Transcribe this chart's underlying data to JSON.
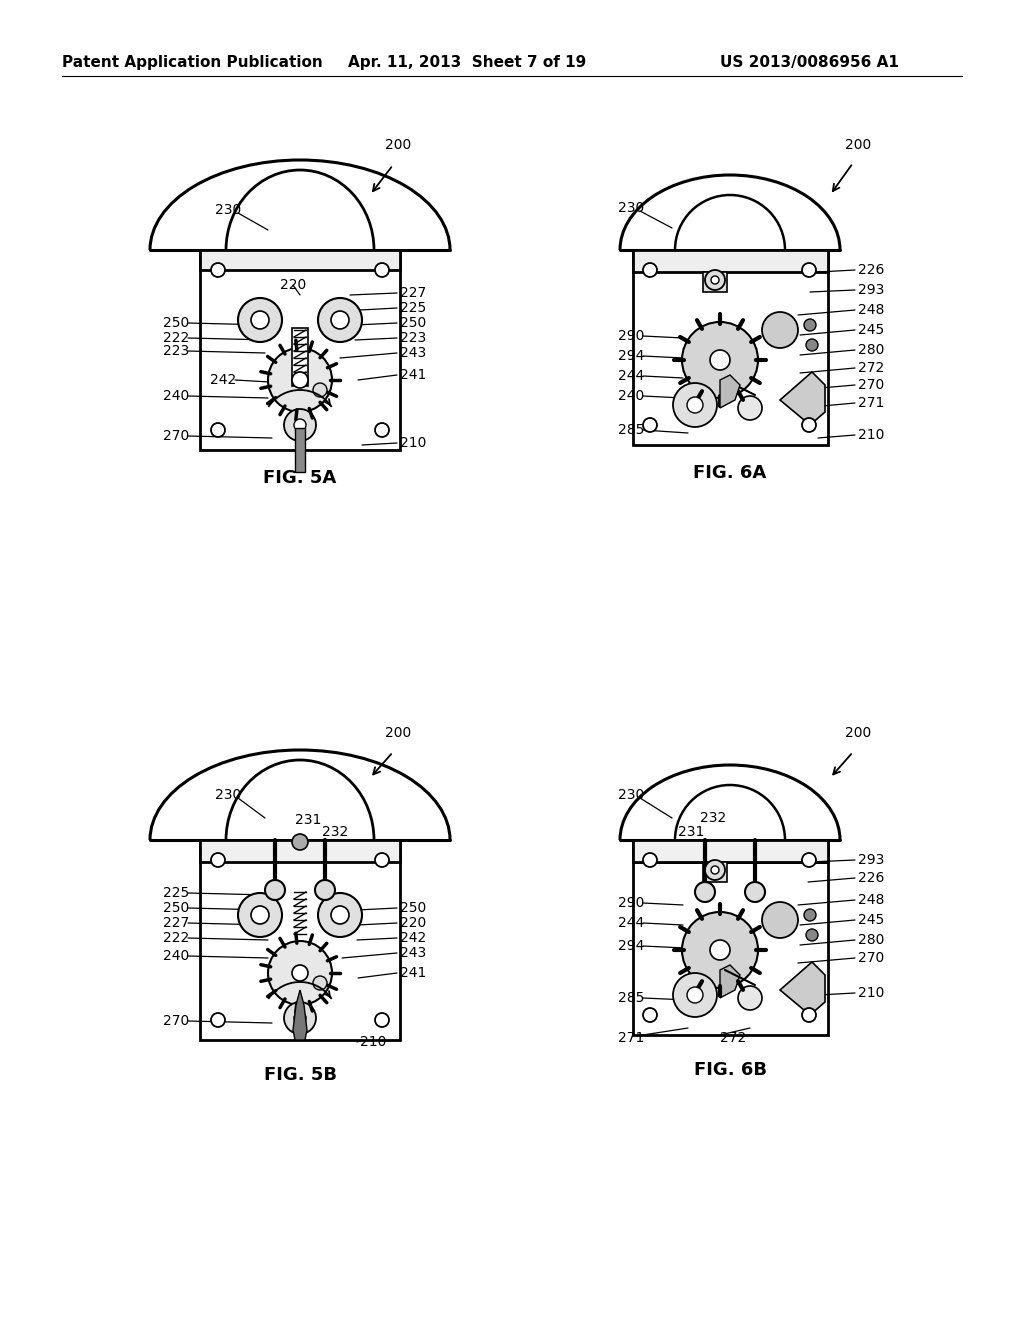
{
  "background_color": "#ffffff",
  "header_left": "Patent Application Publication",
  "header_center": "Apr. 11, 2013  Sheet 7 of 19",
  "header_right": "US 2013/0086956 A1",
  "fig5a_label": "FIG. 5A",
  "fig5b_label": "FIG. 5B",
  "fig6a_label": "FIG. 6A",
  "fig6b_label": "FIG. 6B",
  "header_fontsize": 11,
  "label_fontsize": 13,
  "ref_fontsize": 10
}
